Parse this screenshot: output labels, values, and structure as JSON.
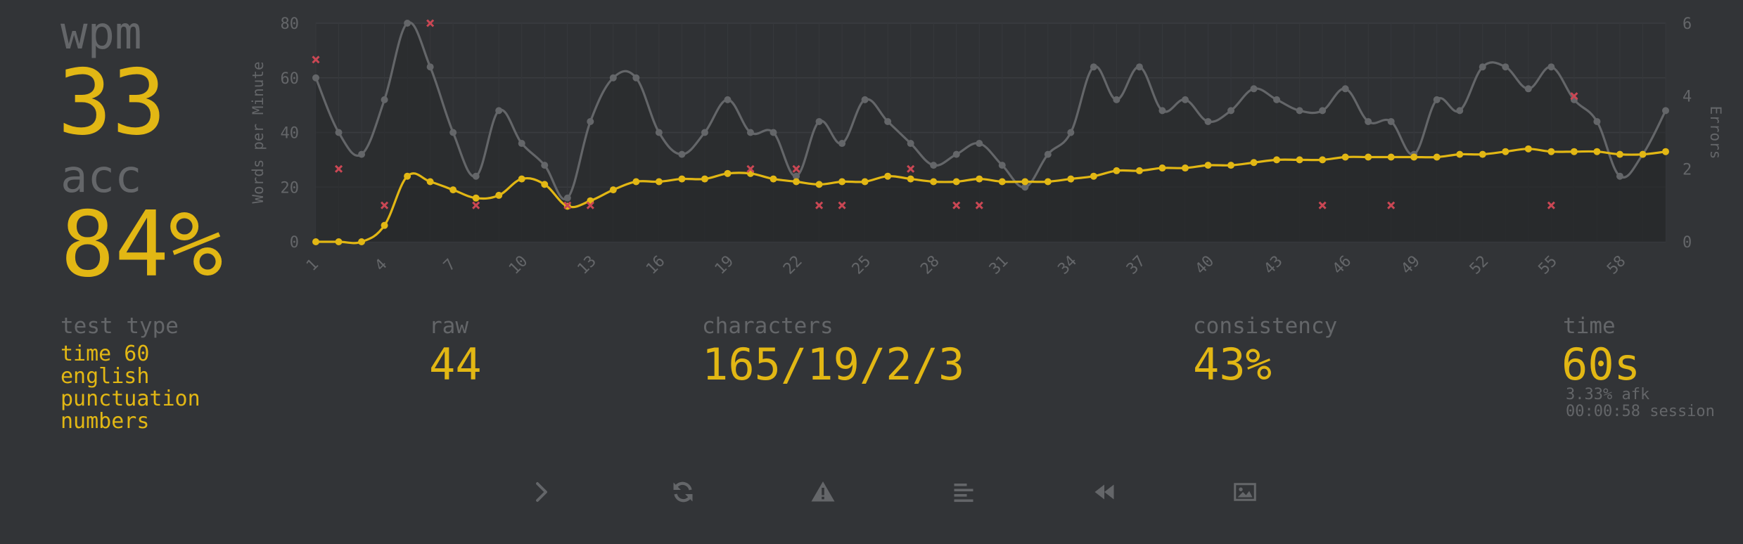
{
  "stats": {
    "wpm_label": "wpm",
    "wpm_value": "33",
    "acc_label": "acc",
    "acc_value": "84%"
  },
  "details": {
    "test_type_label": "test type",
    "test_type_lines": [
      "time 60",
      "english",
      "punctuation",
      "numbers"
    ],
    "raw_label": "raw",
    "raw_value": "44",
    "characters_label": "characters",
    "characters_value": "165/19/2/3",
    "consistency_label": "consistency",
    "consistency_value": "43%",
    "time_label": "time",
    "time_value": "60s",
    "afk_text": "3.33% afk",
    "session_text": "00:00:58 session"
  },
  "buttons": [
    {
      "name": "next-test-button",
      "icon": "chevron-right-icon"
    },
    {
      "name": "restart-button",
      "icon": "refresh-icon"
    },
    {
      "name": "report-button",
      "icon": "warning-icon"
    },
    {
      "name": "words-history-button",
      "icon": "align-left-icon"
    },
    {
      "name": "replay-button",
      "icon": "backward-icon"
    },
    {
      "name": "screenshot-button",
      "icon": "image-icon"
    }
  ],
  "colors": {
    "background": "#323437",
    "main": "#e2b714",
    "sub": "#646669",
    "error": "#ca4754",
    "raw_line": "#646669"
  },
  "chart_data": {
    "type": "line",
    "ylabel": "Words per Minute",
    "y2label": "Errors",
    "ylim": [
      0,
      80
    ],
    "y2lim": [
      0,
      6
    ],
    "yticks": [
      "0",
      "20",
      "40",
      "60",
      "80"
    ],
    "y2ticks": [
      "0",
      "2",
      "4",
      "6"
    ],
    "xticks": [
      "1",
      "4",
      "7",
      "10",
      "13",
      "16",
      "19",
      "22",
      "25",
      "28",
      "31",
      "34",
      "37",
      "40",
      "43",
      "46",
      "49",
      "52",
      "55",
      "58"
    ],
    "grid": true,
    "x": [
      1,
      2,
      3,
      4,
      5,
      6,
      7,
      8,
      9,
      10,
      11,
      12,
      13,
      14,
      15,
      16,
      17,
      18,
      19,
      20,
      21,
      22,
      23,
      24,
      25,
      26,
      27,
      28,
      29,
      30,
      31,
      32,
      33,
      34,
      35,
      36,
      37,
      38,
      39,
      40,
      41,
      42,
      43,
      44,
      45,
      46,
      47,
      48,
      49,
      50,
      51,
      52,
      53,
      54,
      55,
      56,
      57,
      58,
      59,
      60
    ],
    "series": [
      {
        "key": "raw",
        "values": [
          60,
          40,
          32,
          52,
          80,
          64,
          40,
          24,
          48,
          36,
          28,
          16,
          44,
          60,
          60,
          40,
          32,
          40,
          52,
          40,
          40,
          24,
          44,
          36,
          52,
          44,
          36,
          28,
          32,
          36,
          28,
          20,
          32,
          40,
          64,
          52,
          64,
          48,
          52,
          44,
          48,
          56,
          52,
          48,
          48,
          56,
          44,
          44,
          32,
          52,
          48,
          64,
          64,
          56,
          64,
          52,
          44,
          24,
          32,
          48
        ]
      },
      {
        "key": "wpm",
        "values": [
          0,
          0,
          0,
          6,
          24,
          22,
          19,
          16,
          17,
          23,
          21,
          13,
          15,
          19,
          22,
          22,
          23,
          23,
          25,
          25,
          23,
          22,
          21,
          22,
          22,
          24,
          23,
          22,
          22,
          23,
          22,
          22,
          22,
          23,
          24,
          26,
          26,
          27,
          27,
          28,
          28,
          29,
          30,
          30,
          30,
          31,
          31,
          31,
          31,
          31,
          32,
          32,
          33,
          34,
          33,
          33,
          33,
          32,
          32,
          33
        ]
      },
      {
        "key": "errors",
        "points": [
          [
            1,
            5
          ],
          [
            2,
            2
          ],
          [
            4,
            1
          ],
          [
            6,
            6
          ],
          [
            8,
            1
          ],
          [
            12,
            1
          ],
          [
            13,
            1
          ],
          [
            20,
            2
          ],
          [
            22,
            2
          ],
          [
            23,
            1
          ],
          [
            24,
            1
          ],
          [
            27,
            2
          ],
          [
            29,
            1
          ],
          [
            30,
            1
          ],
          [
            45,
            1
          ],
          [
            48,
            1
          ],
          [
            55,
            1
          ],
          [
            56,
            4
          ]
        ]
      }
    ]
  }
}
